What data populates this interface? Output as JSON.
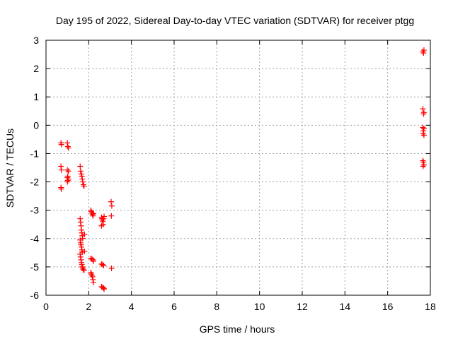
{
  "chart_data": {
    "type": "scatter",
    "title": "Day 195 of 2022, Sidereal Day-to-day VTEC variation (SDTVAR) for receiver ptgg",
    "xlabel": "GPS time / hours",
    "ylabel": "SDTVAR / TECUs",
    "xlim": [
      0,
      18
    ],
    "ylim": [
      -6,
      3
    ],
    "xticks": [
      "0",
      "2",
      "4",
      "6",
      "8",
      "10",
      "12",
      "14",
      "16",
      "18"
    ],
    "yticks": [
      "-6",
      "-5",
      "-4",
      "-3",
      "-2",
      "-1",
      "0",
      "1",
      "2",
      "3"
    ],
    "grid": true,
    "marker": "plus",
    "marker_color": "#ff0000",
    "series": [
      {
        "name": "SDTVAR",
        "points": [
          [
            0.7,
            -0.62
          ],
          [
            0.72,
            -0.68
          ],
          [
            0.7,
            -1.45
          ],
          [
            0.72,
            -1.58
          ],
          [
            0.7,
            -2.2
          ],
          [
            0.72,
            -2.25
          ],
          [
            1.0,
            -0.62
          ],
          [
            1.02,
            -0.75
          ],
          [
            1.05,
            -0.8
          ],
          [
            1.0,
            -1.58
          ],
          [
            1.05,
            -1.62
          ],
          [
            1.02,
            -1.8
          ],
          [
            1.0,
            -1.85
          ],
          [
            1.05,
            -1.9
          ],
          [
            1.0,
            -2.0
          ],
          [
            1.02,
            -1.95
          ],
          [
            1.6,
            -1.45
          ],
          [
            1.62,
            -1.62
          ],
          [
            1.65,
            -1.72
          ],
          [
            1.68,
            -1.8
          ],
          [
            1.7,
            -1.9
          ],
          [
            1.72,
            -2.0
          ],
          [
            1.75,
            -2.1
          ],
          [
            1.78,
            -2.15
          ],
          [
            1.6,
            -3.3
          ],
          [
            1.62,
            -3.42
          ],
          [
            1.64,
            -3.55
          ],
          [
            1.66,
            -3.7
          ],
          [
            1.68,
            -3.8
          ],
          [
            1.7,
            -3.9
          ],
          [
            1.72,
            -4.0
          ],
          [
            1.6,
            -4.05
          ],
          [
            1.62,
            -4.15
          ],
          [
            1.64,
            -4.22
          ],
          [
            1.66,
            -4.3
          ],
          [
            1.68,
            -4.4
          ],
          [
            1.7,
            -4.48
          ],
          [
            1.6,
            -4.55
          ],
          [
            1.62,
            -4.65
          ],
          [
            1.64,
            -4.75
          ],
          [
            1.66,
            -4.85
          ],
          [
            1.68,
            -4.92
          ],
          [
            1.7,
            -5.0
          ],
          [
            1.72,
            -5.05
          ],
          [
            1.75,
            -5.1
          ],
          [
            1.78,
            -5.12
          ],
          [
            1.8,
            -4.45
          ],
          [
            1.8,
            -3.85
          ],
          [
            2.1,
            -3.0
          ],
          [
            2.12,
            -3.05
          ],
          [
            2.15,
            -3.1
          ],
          [
            2.18,
            -3.15
          ],
          [
            2.2,
            -3.2
          ],
          [
            2.22,
            -3.12
          ],
          [
            2.1,
            -4.7
          ],
          [
            2.15,
            -4.72
          ],
          [
            2.2,
            -4.75
          ],
          [
            2.22,
            -4.8
          ],
          [
            2.1,
            -5.2
          ],
          [
            2.12,
            -5.25
          ],
          [
            2.15,
            -5.3
          ],
          [
            2.18,
            -5.35
          ],
          [
            2.2,
            -5.45
          ],
          [
            2.22,
            -5.55
          ],
          [
            2.6,
            -3.25
          ],
          [
            2.62,
            -3.3
          ],
          [
            2.64,
            -3.35
          ],
          [
            2.66,
            -3.4
          ],
          [
            2.68,
            -3.5
          ],
          [
            2.7,
            -3.3
          ],
          [
            2.72,
            -3.22
          ],
          [
            2.6,
            -3.55
          ],
          [
            2.6,
            -4.9
          ],
          [
            2.65,
            -4.92
          ],
          [
            2.7,
            -4.95
          ],
          [
            2.6,
            -5.7
          ],
          [
            2.65,
            -5.72
          ],
          [
            2.7,
            -5.75
          ],
          [
            2.72,
            -5.78
          ],
          [
            3.05,
            -2.7
          ],
          [
            3.08,
            -2.85
          ],
          [
            3.06,
            -3.2
          ],
          [
            3.07,
            -5.05
          ],
          [
            17.65,
            2.6
          ],
          [
            17.7,
            2.65
          ],
          [
            17.68,
            2.55
          ],
          [
            17.65,
            0.58
          ],
          [
            17.7,
            0.45
          ],
          [
            17.68,
            0.4
          ],
          [
            17.65,
            -0.08
          ],
          [
            17.7,
            -0.12
          ],
          [
            17.68,
            -0.2
          ],
          [
            17.66,
            -0.3
          ],
          [
            17.7,
            -0.35
          ],
          [
            17.65,
            -1.25
          ],
          [
            17.68,
            -1.3
          ],
          [
            17.7,
            -1.4
          ],
          [
            17.66,
            -1.45
          ]
        ]
      }
    ]
  }
}
